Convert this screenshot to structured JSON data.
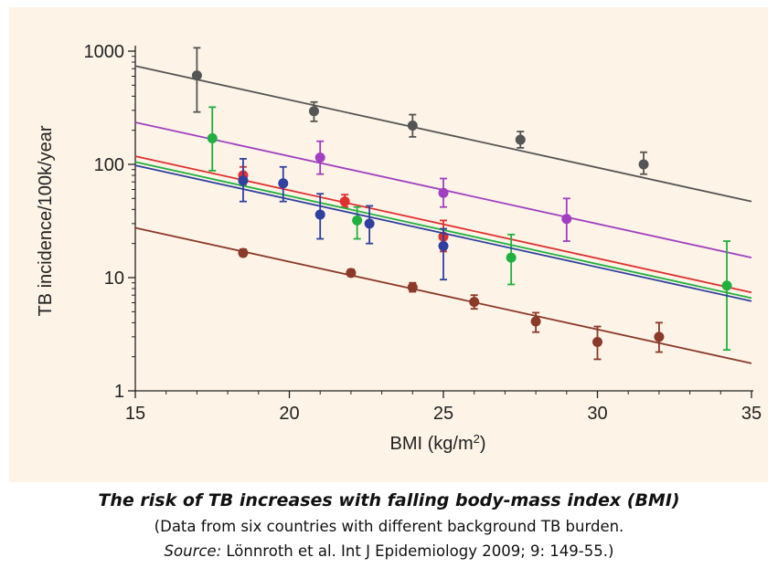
{
  "chart_data": {
    "type": "scatter",
    "y_scale": "log",
    "xlim": [
      15,
      35
    ],
    "ylim": [
      1,
      1000
    ],
    "xticks": [
      15,
      20,
      25,
      30,
      35
    ],
    "yticks": [
      1,
      10,
      100,
      1000
    ],
    "xlabel": "BMI (kg/m",
    "xlabel_superscript": "2",
    "xlabel_suffix": ")",
    "ylabel": "TB incidence/100k/year",
    "grid": false,
    "series": [
      {
        "color": "#555555",
        "points": [
          {
            "x": 17.0,
            "y": 610,
            "lo": 290,
            "hi": 1070
          },
          {
            "x": 20.8,
            "y": 295,
            "lo": 240,
            "hi": 355
          },
          {
            "x": 24.0,
            "y": 220,
            "lo": 175,
            "hi": 275
          },
          {
            "x": 27.5,
            "y": 165,
            "lo": 140,
            "hi": 195
          },
          {
            "x": 31.5,
            "y": 100,
            "lo": 82,
            "hi": 128
          }
        ],
        "fit": [
          [
            15,
            740
          ],
          [
            35,
            47
          ]
        ]
      },
      {
        "color": "#a040c0",
        "points": [
          {
            "x": 21.0,
            "y": 115,
            "lo": 82,
            "hi": 160
          },
          {
            "x": 25.0,
            "y": 56,
            "lo": 42,
            "hi": 75
          },
          {
            "x": 29.0,
            "y": 33,
            "lo": 21,
            "hi": 50
          }
        ],
        "fit": [
          [
            15,
            235
          ],
          [
            35,
            15
          ]
        ]
      },
      {
        "color": "#e03030",
        "points": [
          {
            "x": 18.5,
            "y": 80,
            "lo": 65,
            "hi": 95
          },
          {
            "x": 21.8,
            "y": 47,
            "lo": 42,
            "hi": 54
          },
          {
            "x": 25.0,
            "y": 23,
            "lo": 17,
            "hi": 32
          }
        ],
        "fit": [
          [
            15,
            118
          ],
          [
            35,
            7.4
          ]
        ]
      },
      {
        "color": "#20b040",
        "points": [
          {
            "x": 17.5,
            "y": 170,
            "lo": 88,
            "hi": 320
          },
          {
            "x": 22.2,
            "y": 32,
            "lo": 22,
            "hi": 42
          },
          {
            "x": 27.2,
            "y": 15,
            "lo": 8.7,
            "hi": 24
          },
          {
            "x": 34.2,
            "y": 8.5,
            "lo": 2.3,
            "hi": 21
          }
        ],
        "fit": [
          [
            15,
            105
          ],
          [
            35,
            6.6
          ]
        ]
      },
      {
        "color": "#3040a0",
        "points": [
          {
            "x": 18.5,
            "y": 72,
            "lo": 47,
            "hi": 112
          },
          {
            "x": 19.8,
            "y": 68,
            "lo": 47,
            "hi": 95
          },
          {
            "x": 21.0,
            "y": 36,
            "lo": 22,
            "hi": 55
          },
          {
            "x": 22.6,
            "y": 30,
            "lo": 20,
            "hi": 43
          },
          {
            "x": 25.0,
            "y": 19,
            "lo": 9.6,
            "hi": 27
          }
        ],
        "fit": [
          [
            15,
            98
          ],
          [
            35,
            6.2
          ]
        ]
      },
      {
        "color": "#8b3a2a",
        "points": [
          {
            "x": 18.5,
            "y": 16.5,
            "lo": 15.5,
            "hi": 17.8
          },
          {
            "x": 22.0,
            "y": 11,
            "lo": 10.3,
            "hi": 11.8
          },
          {
            "x": 24.0,
            "y": 8.2,
            "lo": 7.5,
            "hi": 9.0
          },
          {
            "x": 26.0,
            "y": 6.1,
            "lo": 5.3,
            "hi": 7.0
          },
          {
            "x": 28.0,
            "y": 4.1,
            "lo": 3.3,
            "hi": 4.9
          },
          {
            "x": 30.0,
            "y": 2.7,
            "lo": 1.9,
            "hi": 3.7
          },
          {
            "x": 32.0,
            "y": 3.0,
            "lo": 2.2,
            "hi": 4.0
          }
        ],
        "fit": [
          [
            15,
            27.5
          ],
          [
            35,
            1.75
          ]
        ]
      }
    ]
  },
  "caption": {
    "title": "The risk of TB increases with falling body-mass index (BMI)",
    "line1": "(Data from six countries with different background TB burden.",
    "source_label": "Source:",
    "source_text": " Lönnroth et al. Int J Epidemiology 2009; 9: 149-55.)"
  },
  "colors": {
    "panel_background": "#fdf3e6",
    "axis": "#222222"
  }
}
